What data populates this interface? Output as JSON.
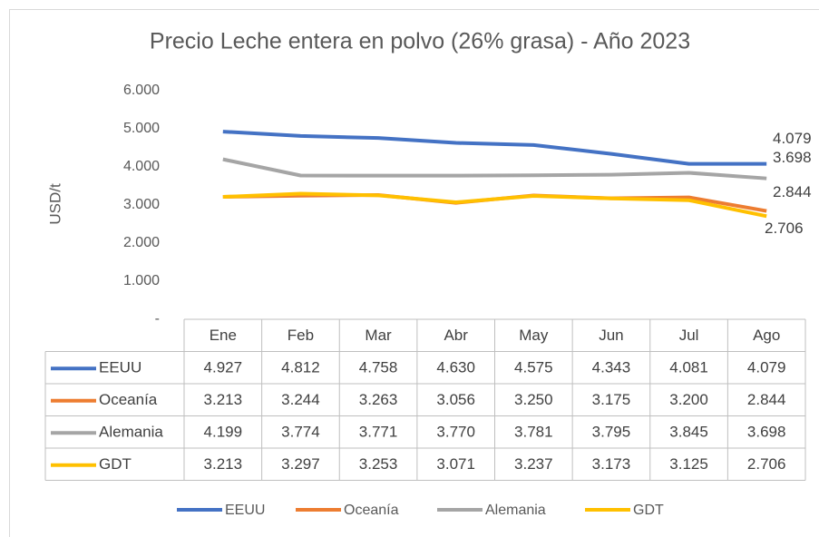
{
  "chart_data": {
    "type": "line",
    "title": "Precio Leche entera en polvo (26% grasa) - Año 2023",
    "y_label": "USD/t",
    "categories": [
      "Ene",
      "Feb",
      "Mar",
      "Abr",
      "May",
      "Jun",
      "Jul",
      "Ago"
    ],
    "series": [
      {
        "name": "EEUU",
        "color": "#4472c4",
        "values": [
          4927,
          4812,
          4758,
          4630,
          4575,
          4343,
          4081,
          4079
        ],
        "value_labels": [
          "4.927",
          "4.812",
          "4.758",
          "4.630",
          "4.575",
          "4.343",
          "4.081",
          "4.079"
        ]
      },
      {
        "name": "Oceanía",
        "color": "#ed7d31",
        "values": [
          3213,
          3244,
          3263,
          3056,
          3250,
          3175,
          3200,
          2844
        ],
        "value_labels": [
          "3.213",
          "3.244",
          "3.263",
          "3.056",
          "3.250",
          "3.175",
          "3.200",
          "2.844"
        ]
      },
      {
        "name": "Alemania",
        "color": "#a5a5a5",
        "values": [
          4199,
          3774,
          3771,
          3770,
          3781,
          3795,
          3845,
          3698
        ],
        "value_labels": [
          "4.199",
          "3.774",
          "3.771",
          "3.770",
          "3.781",
          "3.795",
          "3.845",
          "3.698"
        ]
      },
      {
        "name": "GDT",
        "color": "#ffc000",
        "values": [
          3213,
          3297,
          3253,
          3071,
          3237,
          3173,
          3125,
          2706
        ],
        "value_labels": [
          "3.213",
          "3.297",
          "3.253",
          "3.071",
          "3.237",
          "3.173",
          "3.125",
          "2.706"
        ]
      }
    ],
    "ylim": [
      0,
      6000
    ],
    "yticks": [
      {
        "value": 0,
        "label": "-"
      },
      {
        "value": 1000,
        "label": "1.000"
      },
      {
        "value": 2000,
        "label": "2.000"
      },
      {
        "value": 3000,
        "label": "3.000"
      },
      {
        "value": 4000,
        "label": "4.000"
      },
      {
        "value": 5000,
        "label": "5.000"
      },
      {
        "value": 6000,
        "label": "6.000"
      }
    ],
    "legend": "bottom"
  }
}
